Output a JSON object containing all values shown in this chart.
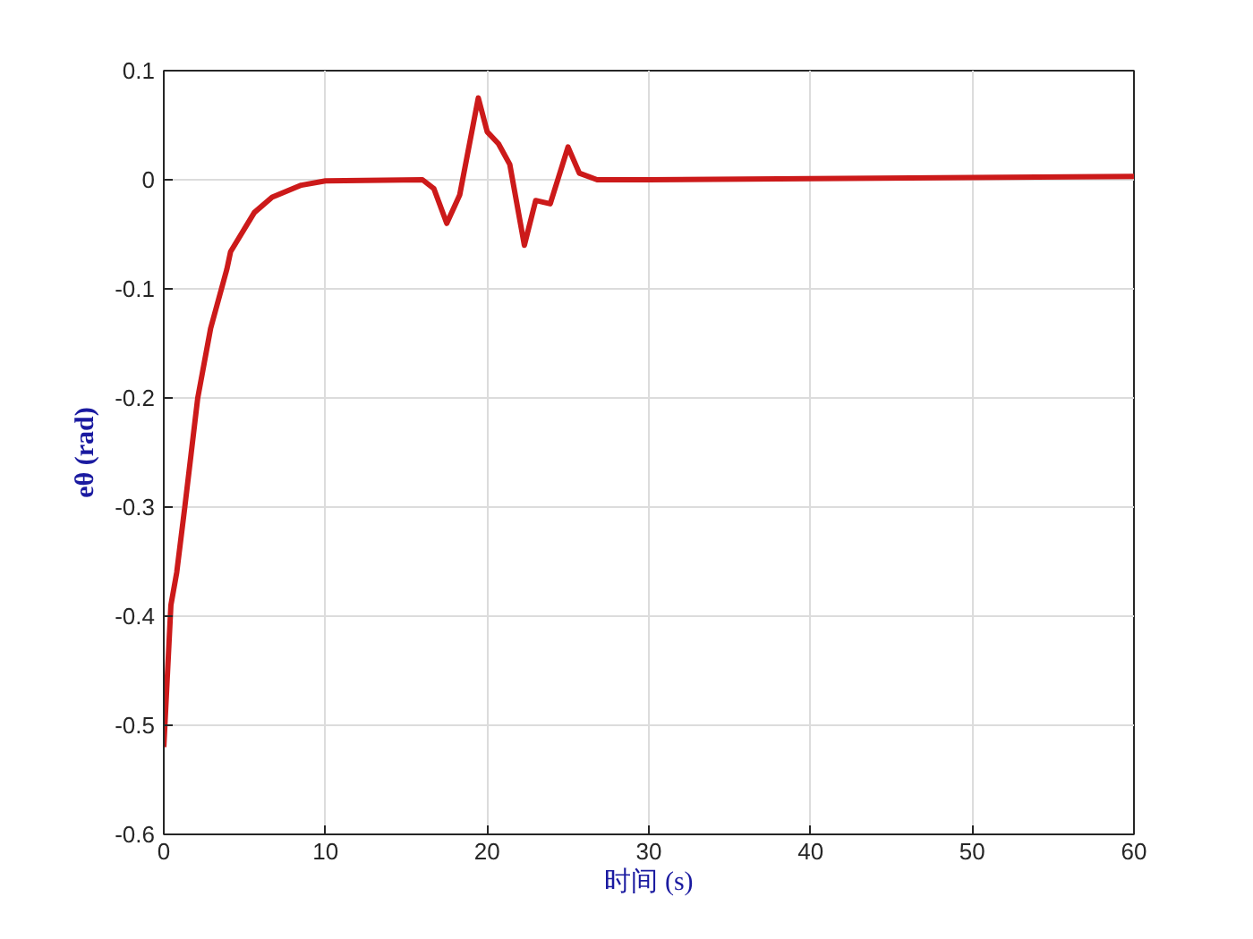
{
  "chart_data": {
    "type": "line",
    "xlabel": "时间 (s)",
    "ylabel": "eθ (rad)",
    "x": [
      0,
      0.44,
      0.8,
      1.3,
      2.1,
      2.9,
      3.9,
      4.13,
      5.6,
      6.7,
      8.5,
      10,
      16,
      16.7,
      17.5,
      18.3,
      19.45,
      20.0,
      20.7,
      21.4,
      22.3,
      23.0,
      23.9,
      25.0,
      25.7,
      26.8,
      30,
      40,
      50,
      60
    ],
    "series": [
      {
        "color": "#cc1a1a",
        "values": [
          -0.52,
          -0.39,
          -0.36,
          -0.3,
          -0.2,
          -0.136,
          -0.082,
          -0.066,
          -0.03,
          -0.016,
          -0.005,
          -0.001,
          0,
          -0.008,
          -0.04,
          -0.014,
          0.075,
          0.044,
          0.033,
          0.014,
          -0.06,
          -0.019,
          -0.022,
          0.03,
          0.006,
          0,
          0,
          0.001,
          0.002,
          0.003
        ]
      }
    ],
    "xlim": [
      0,
      60
    ],
    "ylim": [
      -0.6,
      0.1
    ],
    "xticks": [
      0,
      10,
      20,
      30,
      40,
      50,
      60
    ],
    "yticks": [
      -0.6,
      -0.5,
      -0.4,
      -0.3,
      -0.2,
      -0.1,
      0,
      0.1
    ],
    "grid": true,
    "marker": "none",
    "line_style": "solid"
  }
}
